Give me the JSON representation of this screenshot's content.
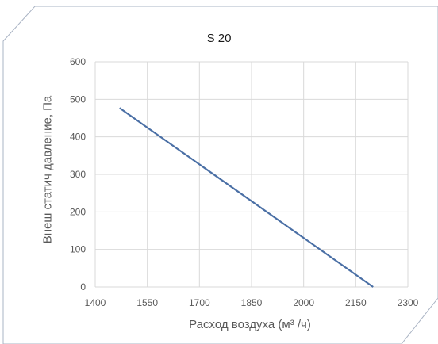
{
  "chart_data": {
    "type": "line",
    "title": "S 20",
    "xlabel": "Расход воздуха (м³ /ч)",
    "ylabel": "Внеш статич давление, Па",
    "xlim": [
      1400,
      2300
    ],
    "ylim": [
      0,
      600
    ],
    "x_ticks": [
      "1400",
      "1550",
      "1700",
      "1850",
      "2000",
      "2150",
      "2300"
    ],
    "y_ticks": [
      "0",
      "100",
      "200",
      "300",
      "400",
      "500",
      "600"
    ],
    "grid": true,
    "series": [
      {
        "color": "#4a6fa5",
        "points": [
          [
            1470,
            477
          ],
          [
            2200,
            0
          ]
        ]
      }
    ]
  }
}
